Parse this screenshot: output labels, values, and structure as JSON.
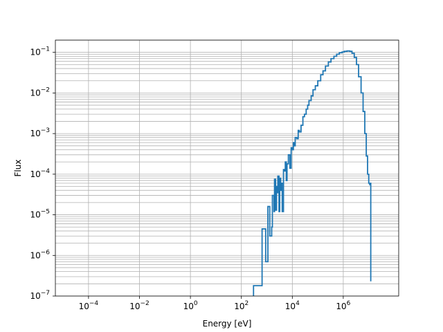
{
  "chart_data": {
    "type": "line",
    "title": "",
    "xlabel": "Energy [eV]",
    "ylabel": "Flux",
    "x_scale": "log",
    "y_scale": "log",
    "xlim": [
      5e-06,
      150000000
    ],
    "ylim": [
      1e-07,
      0.2
    ],
    "grid": "major and minor",
    "legend": "none",
    "line_color": "#1f77b4",
    "x_tick_labels": [
      {
        "exp": "-4",
        "value": 0.0001
      },
      {
        "exp": "-2",
        "value": 0.01
      },
      {
        "exp": "0",
        "value": 1
      },
      {
        "exp": "2",
        "value": 100
      },
      {
        "exp": "4",
        "value": 10000
      },
      {
        "exp": "6",
        "value": 1000000
      }
    ],
    "y_tick_labels": [
      {
        "exp": "-7",
        "value": 1e-07
      },
      {
        "exp": "-6",
        "value": 1e-06
      },
      {
        "exp": "-5",
        "value": 1e-05
      },
      {
        "exp": "-4",
        "value": 0.0001
      },
      {
        "exp": "-3",
        "value": 0.001
      },
      {
        "exp": "-2",
        "value": 0.01
      },
      {
        "exp": "-1",
        "value": 0.1
      }
    ],
    "series": [
      {
        "points": [
          [
            300,
            1.8e-07
          ],
          [
            330,
            1.8e-07
          ],
          [
            650,
            4.5e-06
          ],
          [
            700,
            4.5e-06
          ],
          [
            900,
            7e-07
          ],
          [
            950,
            7e-07
          ],
          [
            1100,
            1.6e-05
          ],
          [
            1180,
            1.6e-05
          ],
          [
            1300,
            3e-06
          ],
          [
            1380,
            3e-06
          ],
          [
            1550,
            5e-06
          ],
          [
            1650,
            3e-05
          ],
          [
            1900,
            1.2e-05
          ],
          [
            2000,
            7.5e-05
          ],
          [
            2200,
            1.3e-05
          ],
          [
            2400,
            5e-05
          ],
          [
            2500,
            3.5e-05
          ],
          [
            2700,
            9e-05
          ],
          [
            3000,
            1.2e-05
          ],
          [
            3200,
            8e-05
          ],
          [
            3500,
            4e-05
          ],
          [
            3800,
            6e-05
          ],
          [
            4000,
            1.2e-05
          ],
          [
            4500,
            0.00013
          ],
          [
            5000,
            0.00012
          ],
          [
            5300,
            0.0002
          ],
          [
            5800,
            7e-05
          ],
          [
            6200,
            0.00018
          ],
          [
            7000,
            0.0003
          ],
          [
            8000,
            0.00014
          ],
          [
            9000,
            0.00045
          ],
          [
            10000,
            0.0004
          ],
          [
            11000,
            0.0006
          ],
          [
            12000,
            0.0005
          ],
          [
            13000,
            0.0008
          ],
          [
            15000,
            0.00075
          ],
          [
            17000,
            0.0012
          ],
          [
            19000,
            0.0011
          ],
          [
            22000,
            0.0016
          ],
          [
            26000,
            0.0026
          ],
          [
            30000,
            0.003
          ],
          [
            35000,
            0.004
          ],
          [
            40000,
            0.005
          ],
          [
            45000,
            0.0065
          ],
          [
            55000,
            0.0085
          ],
          [
            65000,
            0.012
          ],
          [
            80000,
            0.015
          ],
          [
            100000,
            0.02
          ],
          [
            130000,
            0.028
          ],
          [
            160000,
            0.035
          ],
          [
            200000,
            0.046
          ],
          [
            260000,
            0.058
          ],
          [
            330000,
            0.07
          ],
          [
            430000,
            0.08
          ],
          [
            550000,
            0.09
          ],
          [
            700000,
            0.098
          ],
          [
            900000,
            0.102
          ],
          [
            1100000,
            0.106
          ],
          [
            1400000,
            0.108
          ],
          [
            1800000,
            0.106
          ],
          [
            2200000,
            0.095
          ],
          [
            2700000,
            0.075
          ],
          [
            3300000,
            0.05
          ],
          [
            4000000,
            0.025
          ],
          [
            5000000,
            0.01
          ],
          [
            6000000,
            0.0035
          ],
          [
            7000000,
            0.001
          ],
          [
            8000000,
            0.00028
          ],
          [
            9000000,
            0.0001
          ],
          [
            10000000,
            6e-05
          ],
          [
            11000000,
            5.5e-05
          ],
          [
            11500000,
            6e-05
          ],
          [
            12000000,
            2.3e-07
          ]
        ]
      }
    ]
  }
}
